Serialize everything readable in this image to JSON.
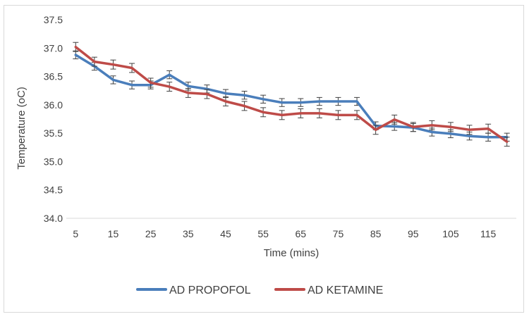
{
  "chart_data": {
    "type": "line",
    "title": "",
    "xlabel": "Time (mins)",
    "ylabel": "Temperature (oC)",
    "ylim": [
      34.0,
      37.5
    ],
    "y_ticks": [
      "34.0",
      "34.5",
      "35.0",
      "35.5",
      "36.0",
      "36.5",
      "37.0",
      "37.5"
    ],
    "x": [
      5,
      10,
      15,
      20,
      25,
      30,
      35,
      40,
      45,
      50,
      55,
      60,
      65,
      70,
      75,
      80,
      85,
      90,
      95,
      100,
      105,
      110,
      115,
      120
    ],
    "x_tick_labels": [
      "5",
      "15",
      "25",
      "35",
      "45",
      "55",
      "65",
      "75",
      "85",
      "95",
      "105",
      "115"
    ],
    "grid": false,
    "legend_position": "bottom",
    "series": [
      {
        "name": "AD PROPOFOL",
        "color": "#4a7ebb",
        "values": [
          36.88,
          36.68,
          36.44,
          36.35,
          36.35,
          36.53,
          36.33,
          36.28,
          36.2,
          36.17,
          36.1,
          36.04,
          36.04,
          36.06,
          36.06,
          36.06,
          35.63,
          35.62,
          35.6,
          35.52,
          35.49,
          35.45,
          35.43,
          35.43
        ],
        "error": [
          0.07,
          0.07,
          0.07,
          0.07,
          0.07,
          0.07,
          0.07,
          0.07,
          0.07,
          0.07,
          0.07,
          0.07,
          0.07,
          0.07,
          0.07,
          0.07,
          0.07,
          0.07,
          0.07,
          0.07,
          0.07,
          0.07,
          0.07,
          0.07
        ]
      },
      {
        "name": "AD KETAMINE",
        "color": "#be4b48",
        "values": [
          37.02,
          36.76,
          36.71,
          36.65,
          36.39,
          36.32,
          36.21,
          36.19,
          36.06,
          35.98,
          35.87,
          35.82,
          35.85,
          35.85,
          35.82,
          35.82,
          35.56,
          35.74,
          35.61,
          35.64,
          35.61,
          35.56,
          35.58,
          35.35
        ],
        "error": [
          0.08,
          0.08,
          0.08,
          0.08,
          0.08,
          0.08,
          0.08,
          0.08,
          0.08,
          0.08,
          0.08,
          0.08,
          0.08,
          0.08,
          0.08,
          0.08,
          0.08,
          0.08,
          0.08,
          0.08,
          0.08,
          0.08,
          0.08,
          0.08
        ]
      }
    ]
  }
}
